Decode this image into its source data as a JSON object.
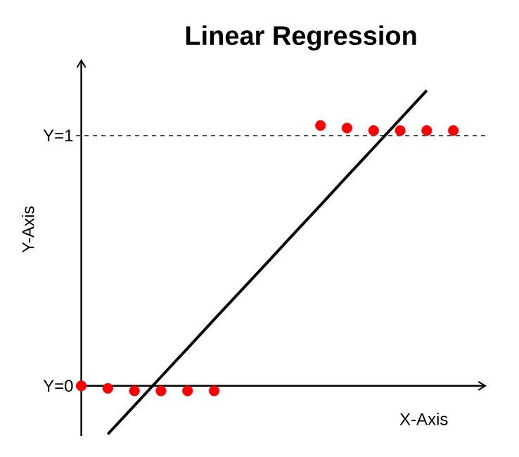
{
  "chart_data": {
    "type": "scatter",
    "title": "**Linear Regression**",
    "xlabel": "X-Axis",
    "ylabel": "Y-Axis",
    "categories": [
      null,
      null,
      null,
      null,
      null,
      null,
      null,
      null,
      null,
      null,
      null,
      null,
      null,
      null,
      null
    ],
    "ylim": [
      -0.2,
      1.3
    ],
    "yticks": [
      {
        "value": 0,
        "label": "Y=0"
      },
      {
        "value": 1,
        "label": "Y=1"
      }
    ],
    "tick_labels": "y",
    "marker": "circle",
    "series": [
      {
        "color": "#ff0000",
        "values": [
          0.0,
          -0.01,
          -0.02,
          -0.02,
          -0.02,
          -0.02,
          null,
          null,
          null,
          1.04,
          1.03,
          1.02,
          1.02,
          1.02,
          1.02
        ]
      },
      {
        "type": "line",
        "color": "#000000",
        "marker": "none",
        "values": [
          null,
          -0.193,
          -0.079,
          0.036,
          0.15,
          0.265,
          0.379,
          0.493,
          0.608,
          0.722,
          0.837,
          0.951,
          1.066,
          1.18,
          null
        ]
      }
    ],
    "ref_lines": [
      {
        "axis": "y",
        "value": 1,
        "line_style": "dashed",
        "color": "#000000"
      }
    ]
  }
}
